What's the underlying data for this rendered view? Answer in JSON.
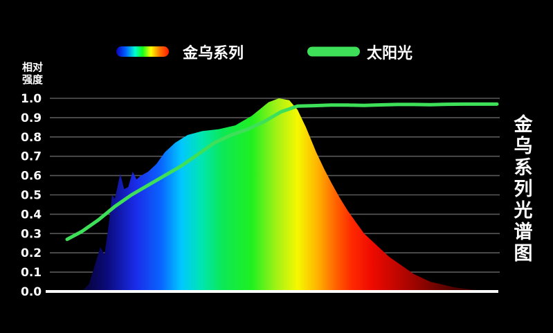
{
  "chart_data": {
    "type": "area",
    "title": "金乌系列光谱图",
    "ylabel": "相对强度",
    "ylim": [
      0,
      1.0
    ],
    "yticks": [
      "0.0",
      "0.1",
      "0.2",
      "0.3",
      "0.4",
      "0.5",
      "0.6",
      "0.7",
      "0.8",
      "0.9",
      "1.0"
    ],
    "grid": true,
    "legend_position": "top",
    "series": [
      {
        "name": "金乌系列",
        "fill": "spectrum-gradient",
        "x": [
          0.0,
          0.018,
          0.035,
          0.045,
          0.055,
          0.066,
          0.073,
          0.08,
          0.093,
          0.102,
          0.112,
          0.123,
          0.132,
          0.143,
          0.16,
          0.18,
          0.2,
          0.225,
          0.255,
          0.29,
          0.33,
          0.37,
          0.41,
          0.45,
          0.475,
          0.5,
          0.52,
          0.54,
          0.565,
          0.585,
          0.602,
          0.62,
          0.64,
          0.66,
          0.68,
          0.7,
          0.72,
          0.74,
          0.76,
          0.78,
          0.8,
          0.82,
          0.84,
          0.86,
          0.88,
          0.9,
          0.92,
          0.94,
          0.96,
          0.98,
          1.0
        ],
        "y": [
          0.0,
          0.04,
          0.16,
          0.23,
          0.19,
          0.36,
          0.5,
          0.48,
          0.61,
          0.53,
          0.54,
          0.62,
          0.58,
          0.6,
          0.62,
          0.66,
          0.72,
          0.77,
          0.81,
          0.83,
          0.84,
          0.86,
          0.91,
          0.98,
          1.0,
          0.99,
          0.94,
          0.85,
          0.72,
          0.63,
          0.56,
          0.49,
          0.42,
          0.36,
          0.3,
          0.26,
          0.22,
          0.18,
          0.15,
          0.12,
          0.09,
          0.07,
          0.05,
          0.04,
          0.03,
          0.02,
          0.015,
          0.01,
          0.005,
          0.002,
          0.0
        ]
      },
      {
        "name": "太阳光",
        "color": "#3ee05a",
        "x": [
          -0.035,
          0.0,
          0.04,
          0.08,
          0.12,
          0.16,
          0.2,
          0.24,
          0.28,
          0.32,
          0.36,
          0.4,
          0.44,
          0.48,
          0.52,
          0.56,
          0.6,
          0.64,
          0.68,
          0.72,
          0.76,
          0.8,
          0.84,
          0.88,
          0.92,
          0.96,
          1.0
        ],
        "y": [
          0.27,
          0.31,
          0.37,
          0.44,
          0.5,
          0.55,
          0.6,
          0.65,
          0.71,
          0.77,
          0.81,
          0.84,
          0.88,
          0.93,
          0.96,
          0.962,
          0.965,
          0.965,
          0.963,
          0.966,
          0.968,
          0.968,
          0.967,
          0.969,
          0.97,
          0.97,
          0.97
        ]
      }
    ]
  }
}
